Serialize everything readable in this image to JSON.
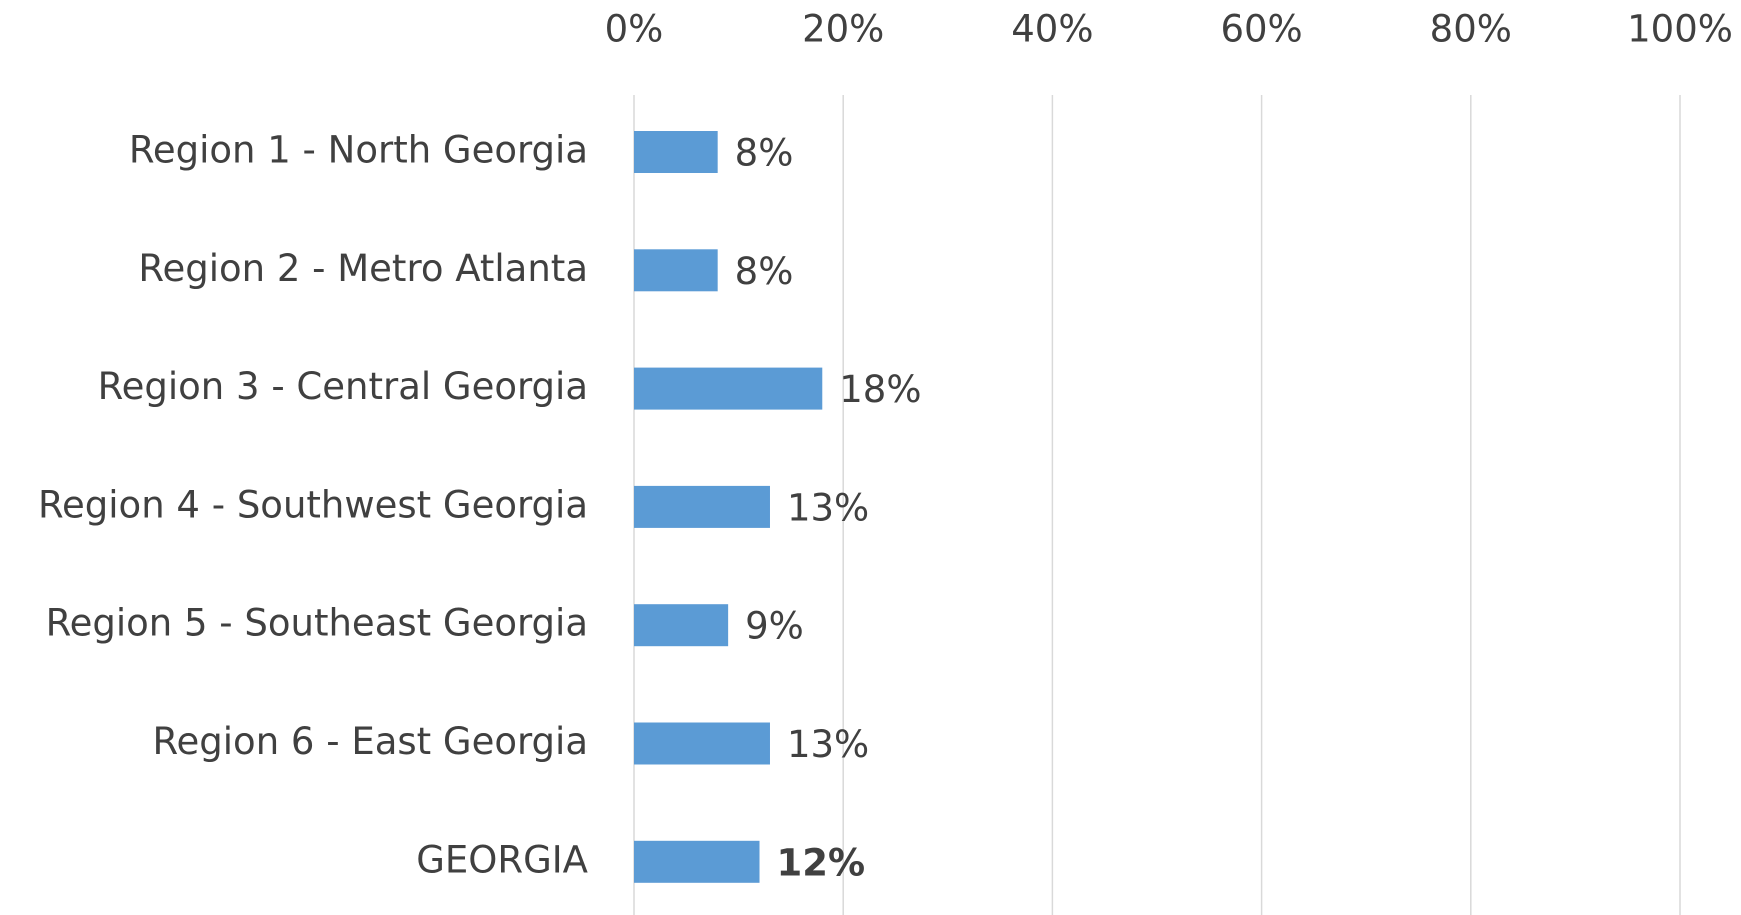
{
  "chart_data": {
    "type": "bar",
    "orientation": "horizontal",
    "categories": [
      "Region 1 - North Georgia",
      "Region 2 - Metro Atlanta",
      "Region 3 - Central Georgia",
      "Region 4 - Southwest Georgia",
      "Region 5 - Southeast Georgia",
      "Region 6 - East Georgia",
      "GEORGIA"
    ],
    "values": [
      8,
      8,
      18,
      13,
      9,
      13,
      12
    ],
    "value_labels": [
      "8%",
      "8%",
      "18%",
      "13%",
      "9%",
      "13%",
      "12%"
    ],
    "color": "#5b9bd5",
    "xlim": [
      0,
      100
    ],
    "xticks": [
      {
        "value": 0,
        "label": "0%"
      },
      {
        "value": 20,
        "label": "20%"
      },
      {
        "value": 40,
        "label": "40%"
      },
      {
        "value": 60,
        "label": "60%"
      },
      {
        "value": 80,
        "label": "80%"
      },
      {
        "value": 100,
        "label": "100%"
      }
    ],
    "grid": true
  }
}
